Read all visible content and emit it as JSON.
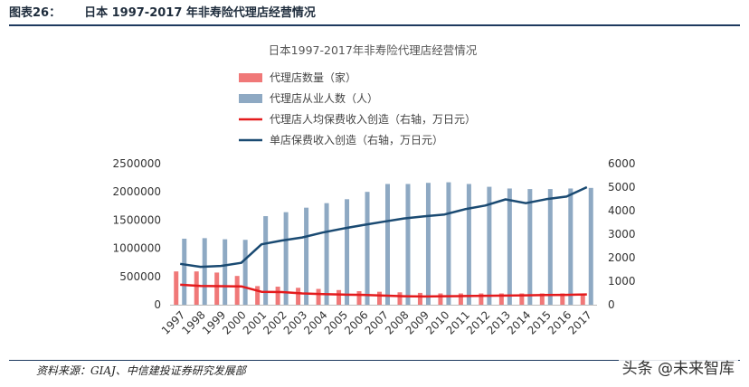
{
  "header": {
    "label": "图表26：",
    "title": "日本 1997-2017 年非寿险代理店经营情况"
  },
  "footer": {
    "source": "资料来源：GIAJ、中信建投证券研究发展部",
    "watermark": "头条 @未来智库"
  },
  "colors": {
    "bar1": "#f07878",
    "bar2": "#8ea9c3",
    "line1": "#e41a1c",
    "line2": "#1a4a72",
    "rule": "#1e3a5f"
  },
  "chart_data": {
    "type": "bar",
    "title": "日本1997-2017年非寿险代理店经营情况",
    "categories": [
      "1997",
      "1998",
      "1999",
      "2000",
      "2001",
      "2002",
      "2003",
      "2004",
      "2005",
      "2006",
      "2007",
      "2008",
      "2009",
      "2010",
      "2011",
      "2012",
      "2013",
      "2014",
      "2015",
      "2016",
      "2017"
    ],
    "ylim": [
      0,
      2500000
    ],
    "yticks": [
      "0",
      "500000",
      "1000000",
      "1500000",
      "2000000",
      "2500000"
    ],
    "y2lim": [
      0,
      6000
    ],
    "y2ticks": [
      "0",
      "1000",
      "2000",
      "3000",
      "4000",
      "5000",
      "6000"
    ],
    "legend_position": "top-left",
    "series": [
      {
        "name": "代理店数量（家）",
        "type": "bar",
        "axis": "left",
        "values": [
          590000,
          590000,
          570000,
          510000,
          330000,
          320000,
          300000,
          280000,
          260000,
          240000,
          230000,
          220000,
          210000,
          200000,
          200000,
          200000,
          200000,
          200000,
          200000,
          200000,
          200000
        ]
      },
      {
        "name": "代理店从业人数（人）",
        "type": "bar",
        "axis": "left",
        "values": [
          1170000,
          1180000,
          1160000,
          1150000,
          1570000,
          1640000,
          1720000,
          1800000,
          1870000,
          2000000,
          2140000,
          2140000,
          2160000,
          2170000,
          2140000,
          2090000,
          2060000,
          2050000,
          2050000,
          2060000,
          2070000
        ]
      },
      {
        "name": "代理店人均保费收入创造（右轴，万日元）",
        "type": "line",
        "axis": "right",
        "values": [
          850,
          800,
          790,
          780,
          550,
          540,
          480,
          450,
          430,
          420,
          390,
          360,
          350,
          360,
          370,
          380,
          390,
          400,
          410,
          420,
          440
        ]
      },
      {
        "name": "单店保费收入创造（右轴，万日元）",
        "type": "line",
        "axis": "right",
        "values": [
          1740,
          1610,
          1650,
          1780,
          2570,
          2730,
          2860,
          3070,
          3240,
          3390,
          3530,
          3670,
          3760,
          3840,
          4060,
          4220,
          4480,
          4320,
          4490,
          4600,
          5000
        ]
      }
    ]
  }
}
